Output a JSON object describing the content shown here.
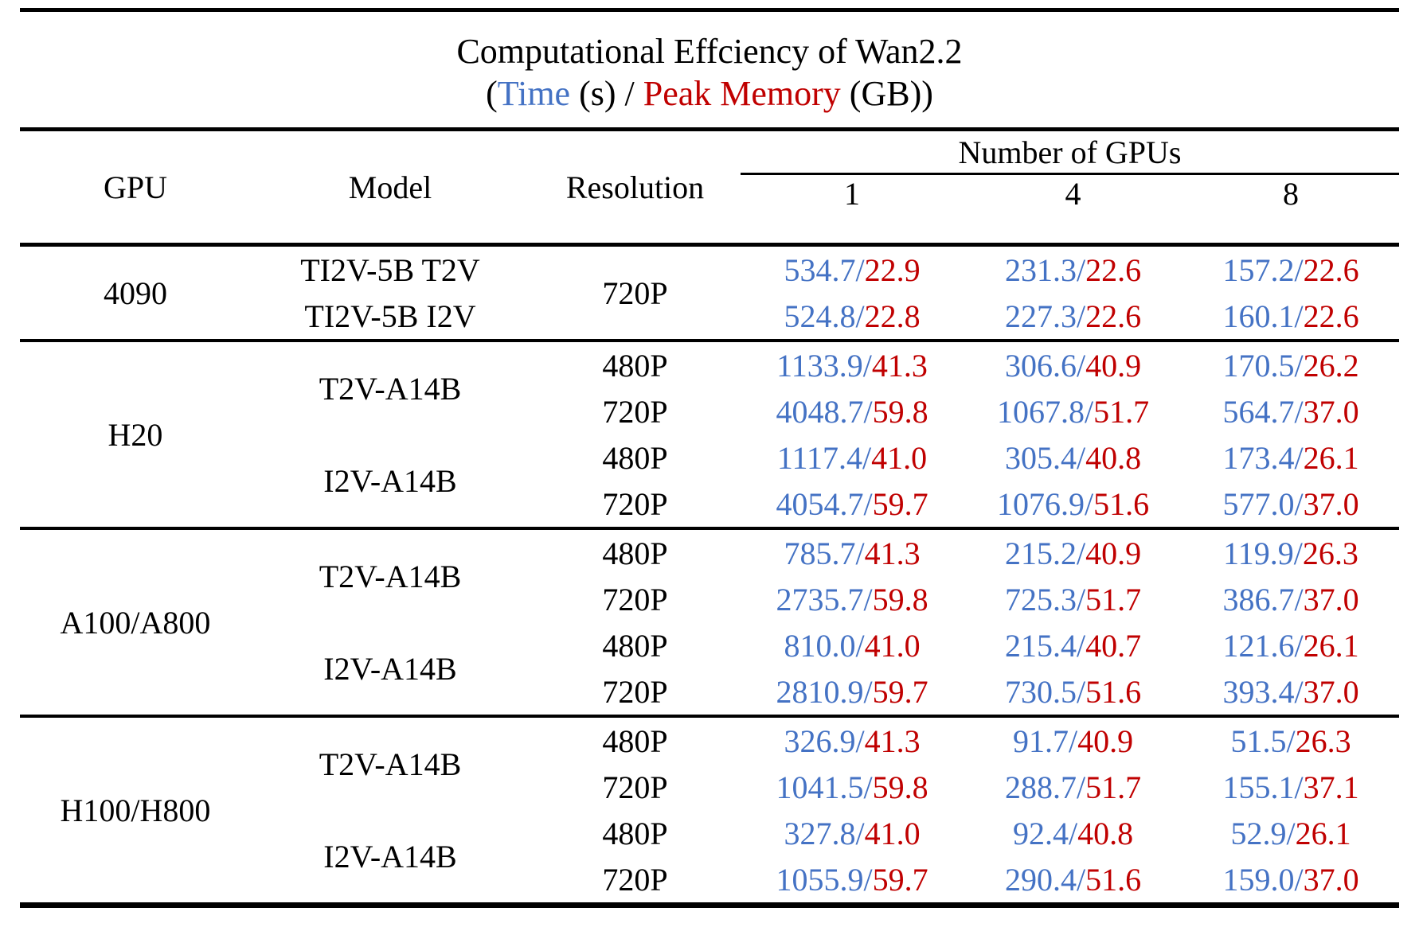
{
  "colors": {
    "time_blue": "#4472c4",
    "memory_red": "#c00000",
    "text": "#000000",
    "rule": "#000000",
    "background": "#ffffff"
  },
  "title": {
    "subtitle_parts": {
      "open": "(",
      "time": "Time",
      "mid": " (s) / ",
      "memory": "Peak Memory",
      "close": " (GB))"
    }
  },
  "chart_data": {
    "type": "table",
    "title": "Computational Effciency of Wan2.2",
    "subtitle": "(Time (s) / Peak Memory (GB))",
    "value_format": "Time (s) / Peak Memory (GB)",
    "separator": "/",
    "header": {
      "gpu": "GPU",
      "model": "Model",
      "resolution": "Resolution",
      "group": "Number of GPUs",
      "counts": [
        "1",
        "4",
        "8"
      ]
    },
    "sections": [
      {
        "gpu": "4090",
        "rows": [
          {
            "model": "TI2V-5B T2V",
            "model_span": 1,
            "resolution": "720P",
            "resolution_span": 2,
            "values": [
              [
                "534.7",
                "22.9"
              ],
              [
                "231.3",
                "22.6"
              ],
              [
                "157.2",
                "22.6"
              ]
            ]
          },
          {
            "model": "TI2V-5B I2V",
            "model_span": 1,
            "values": [
              [
                "524.8",
                "22.8"
              ],
              [
                "227.3",
                "22.6"
              ],
              [
                "160.1",
                "22.6"
              ]
            ]
          }
        ]
      },
      {
        "gpu": "H20",
        "rows": [
          {
            "model": "T2V-A14B",
            "model_span": 2,
            "resolution": "480P",
            "resolution_span": 1,
            "values": [
              [
                "1133.9",
                "41.3"
              ],
              [
                "306.6",
                "40.9"
              ],
              [
                "170.5",
                "26.2"
              ]
            ]
          },
          {
            "resolution": "720P",
            "resolution_span": 1,
            "values": [
              [
                "4048.7",
                "59.8"
              ],
              [
                "1067.8",
                "51.7"
              ],
              [
                "564.7",
                "37.0"
              ]
            ]
          },
          {
            "model": "I2V-A14B",
            "model_span": 2,
            "resolution": "480P",
            "resolution_span": 1,
            "values": [
              [
                "1117.4",
                "41.0"
              ],
              [
                "305.4",
                "40.8"
              ],
              [
                "173.4",
                "26.1"
              ]
            ]
          },
          {
            "resolution": "720P",
            "resolution_span": 1,
            "values": [
              [
                "4054.7",
                "59.7"
              ],
              [
                "1076.9",
                "51.6"
              ],
              [
                "577.0",
                "37.0"
              ]
            ]
          }
        ]
      },
      {
        "gpu": "A100/A800",
        "rows": [
          {
            "model": "T2V-A14B",
            "model_span": 2,
            "resolution": "480P",
            "resolution_span": 1,
            "values": [
              [
                "785.7",
                "41.3"
              ],
              [
                "215.2",
                "40.9"
              ],
              [
                "119.9",
                "26.3"
              ]
            ]
          },
          {
            "resolution": "720P",
            "resolution_span": 1,
            "values": [
              [
                "2735.7",
                "59.8"
              ],
              [
                "725.3",
                "51.7"
              ],
              [
                "386.7",
                "37.0"
              ]
            ]
          },
          {
            "model": "I2V-A14B",
            "model_span": 2,
            "resolution": "480P",
            "resolution_span": 1,
            "values": [
              [
                "810.0",
                "41.0"
              ],
              [
                "215.4",
                "40.7"
              ],
              [
                "121.6",
                "26.1"
              ]
            ]
          },
          {
            "resolution": "720P",
            "resolution_span": 1,
            "values": [
              [
                "2810.9",
                "59.7"
              ],
              [
                "730.5",
                "51.6"
              ],
              [
                "393.4",
                "37.0"
              ]
            ]
          }
        ]
      },
      {
        "gpu": "H100/H800",
        "rows": [
          {
            "model": "T2V-A14B",
            "model_span": 2,
            "resolution": "480P",
            "resolution_span": 1,
            "values": [
              [
                "326.9",
                "41.3"
              ],
              [
                "91.7",
                "40.9"
              ],
              [
                "51.5",
                "26.3"
              ]
            ]
          },
          {
            "resolution": "720P",
            "resolution_span": 1,
            "values": [
              [
                "1041.5",
                "59.8"
              ],
              [
                "288.7",
                "51.7"
              ],
              [
                "155.1",
                "37.1"
              ]
            ]
          },
          {
            "model": "I2V-A14B",
            "model_span": 2,
            "resolution": "480P",
            "resolution_span": 1,
            "values": [
              [
                "327.8",
                "41.0"
              ],
              [
                "92.4",
                "40.8"
              ],
              [
                "52.9",
                "26.1"
              ]
            ]
          },
          {
            "resolution": "720P",
            "resolution_span": 1,
            "values": [
              [
                "1055.9",
                "59.7"
              ],
              [
                "290.4",
                "51.6"
              ],
              [
                "159.0",
                "37.0"
              ]
            ]
          }
        ]
      }
    ]
  }
}
